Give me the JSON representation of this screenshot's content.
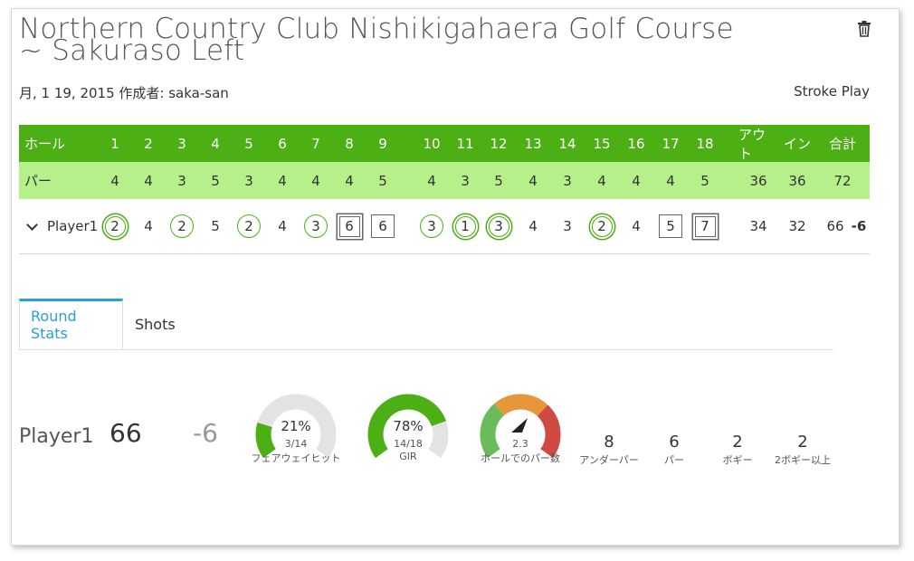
{
  "header": {
    "title": "Northern Country Club Nishikigahaera Golf Course ~ Sakuraso Left",
    "meta": "月, 1 19, 2015 作成者: saka-san",
    "mode": "Stroke Play",
    "delete_icon": "trash-icon"
  },
  "scorecard": {
    "head": {
      "label": "ホール",
      "holes": [
        "1",
        "2",
        "3",
        "4",
        "5",
        "6",
        "7",
        "8",
        "9",
        "10",
        "11",
        "12",
        "13",
        "14",
        "15",
        "16",
        "17",
        "18"
      ],
      "out": "アウト",
      "in": "イン",
      "total": "合計"
    },
    "par": {
      "label": "パー",
      "values": [
        "4",
        "4",
        "3",
        "5",
        "3",
        "4",
        "4",
        "4",
        "5",
        "4",
        "3",
        "5",
        "4",
        "3",
        "4",
        "4",
        "4",
        "5"
      ],
      "out": "36",
      "in": "36",
      "total": "72"
    },
    "player": {
      "name": "Player1",
      "scores": [
        {
          "v": "2",
          "mark": "eagle"
        },
        {
          "v": "4",
          "mark": "par"
        },
        {
          "v": "2",
          "mark": "birdie"
        },
        {
          "v": "5",
          "mark": "par"
        },
        {
          "v": "2",
          "mark": "birdie"
        },
        {
          "v": "4",
          "mark": "par"
        },
        {
          "v": "3",
          "mark": "birdie"
        },
        {
          "v": "6",
          "mark": "double"
        },
        {
          "v": "6",
          "mark": "bogey"
        },
        {
          "v": "3",
          "mark": "birdie"
        },
        {
          "v": "1",
          "mark": "eagle"
        },
        {
          "v": "3",
          "mark": "eagle"
        },
        {
          "v": "4",
          "mark": "par"
        },
        {
          "v": "3",
          "mark": "par"
        },
        {
          "v": "2",
          "mark": "eagle"
        },
        {
          "v": "4",
          "mark": "par"
        },
        {
          "v": "5",
          "mark": "bogey"
        },
        {
          "v": "7",
          "mark": "double"
        }
      ],
      "out": "34",
      "in": "32",
      "total": "66",
      "diff": "-6"
    }
  },
  "tabs": {
    "round_stats": "Round Stats",
    "shots": "Shots"
  },
  "stats": {
    "player": "Player1",
    "total": "66",
    "diff": "-6",
    "fairway": {
      "pct": "21%",
      "sub": "3/14",
      "label": "フェアウェイヒット",
      "fraction": 0.21
    },
    "gir": {
      "pct": "78%",
      "sub": "14/18",
      "label": "GIR",
      "fraction": 0.78
    },
    "putts": {
      "value": "2.3",
      "label": "ホールでのパー数"
    },
    "counts": [
      {
        "value": "8",
        "label": "アンダーパー"
      },
      {
        "value": "6",
        "label": "パー"
      },
      {
        "value": "2",
        "label": "ボギー"
      },
      {
        "value": "2",
        "label": "2ボギー以上"
      }
    ],
    "colors": {
      "green": "#4caf14",
      "gray": "#e3e3e3",
      "orange": "#e8963a",
      "red": "#cf4a42",
      "lightgreen": "#6cbb5a"
    }
  }
}
